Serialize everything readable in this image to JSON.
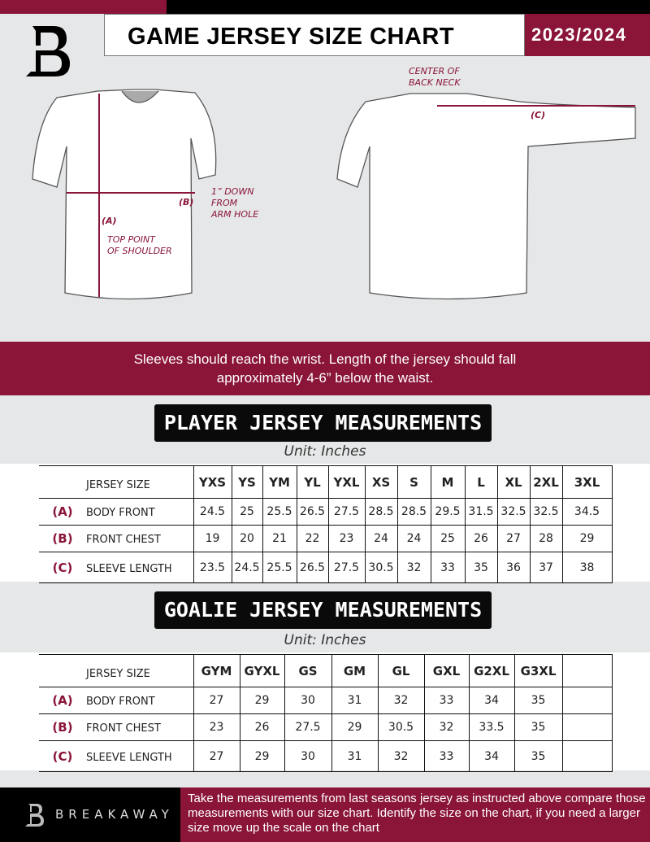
{
  "header": {
    "title": "GAME JERSEY SIZE CHART",
    "season": "2023/2024",
    "logo_icon": "breakaway-b-logo"
  },
  "diagram": {
    "label_a": "(A)",
    "label_b": "(B)",
    "label_c": "(C)",
    "top_point": [
      "TOP POINT",
      "OF SHOULDER"
    ],
    "down": [
      "1” DOWN",
      "FROM",
      "ARM HOLE"
    ],
    "center": [
      "CENTER OF",
      "BACK NECK"
    ]
  },
  "banner": {
    "line1": "Sleeves should reach the wrist. Length of the jersey should fall",
    "line2": "approximately 4-6” below the waist."
  },
  "player": {
    "title": "PLAYER JERSEY MEASUREMENTS",
    "unit": "Unit: Inches",
    "size_label": "JERSEY SIZE",
    "sizes": [
      "YXS",
      "YS",
      "YM",
      "YL",
      "YXL",
      "XS",
      "S",
      "M",
      "L",
      "XL",
      "2XL",
      "3XL"
    ],
    "rows": [
      {
        "letter": "(A)",
        "label": "BODY FRONT",
        "values": [
          "24.5",
          "25",
          "25.5",
          "26.5",
          "27.5",
          "28.5",
          "28.5",
          "29.5",
          "31.5",
          "32.5",
          "32.5",
          "34.5"
        ]
      },
      {
        "letter": "(B)",
        "label": "FRONT CHEST",
        "values": [
          "19",
          "20",
          "21",
          "22",
          "23",
          "24",
          "24",
          "25",
          "26",
          "27",
          "28",
          "29"
        ]
      },
      {
        "letter": "(C)",
        "label": "SLEEVE LENGTH",
        "values": [
          "23.5",
          "24.5",
          "25.5",
          "26.5",
          "27.5",
          "30.5",
          "32",
          "33",
          "35",
          "36",
          "37",
          "38"
        ]
      }
    ]
  },
  "goalie": {
    "title": "GOALIE JERSEY MEASUREMENTS",
    "unit": "Unit: Inches",
    "size_label": "JERSEY SIZE",
    "sizes": [
      "GYM",
      "GYXL",
      "GS",
      "GM",
      "GL",
      "GXL",
      "G2XL",
      "G3XL",
      ""
    ],
    "rows": [
      {
        "letter": "(A)",
        "label": "BODY FRONT",
        "values": [
          "27",
          "29",
          "30",
          "31",
          "32",
          "33",
          "34",
          "35",
          ""
        ]
      },
      {
        "letter": "(B)",
        "label": "FRONT CHEST",
        "values": [
          "23",
          "26",
          "27.5",
          "29",
          "30.5",
          "32",
          "33.5",
          "35",
          ""
        ]
      },
      {
        "letter": "(C)",
        "label": "SLEEVE LENGTH",
        "values": [
          "27",
          "29",
          "30",
          "31",
          "32",
          "33",
          "34",
          "35",
          ""
        ]
      }
    ]
  },
  "footer": {
    "brand": "BREAKAWAY",
    "text": "Take the measurements from last seasons jersey as instructed above compare those measurements  with our size chart. Identify the size on the chart, if you need a larger size move up the scale on the chart"
  },
  "colors": {
    "brand": "#8a1538",
    "dark": "#000000",
    "background": "#e6e7e8"
  }
}
